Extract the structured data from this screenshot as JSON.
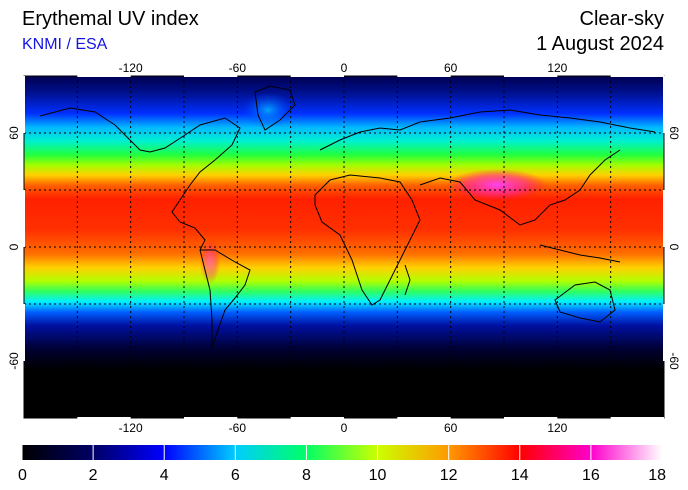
{
  "header": {
    "title": "Erythemal UV index",
    "source": "KNMI / ESA",
    "sky_condition": "Clear-sky",
    "date": "1 August 2024"
  },
  "map": {
    "projection": "equirectangular",
    "lon_range": [
      -180,
      180
    ],
    "lat_range": [
      -90,
      90
    ],
    "lon_labels": [
      "-120",
      "-60",
      "0",
      "60",
      "120"
    ],
    "lon_values": [
      -120,
      -60,
      0,
      60,
      120
    ],
    "lat_labels": [
      "60",
      "0",
      "-60"
    ],
    "lat_values": [
      60,
      0,
      -60
    ],
    "grid": "dashed, every 30 degrees",
    "background": "#000000",
    "coastline_color": "#000000"
  },
  "colorbar": {
    "min": 0,
    "max": 18,
    "tick_labels": [
      "0",
      "2",
      "4",
      "6",
      "8",
      "10",
      "12",
      "14",
      "16",
      "18"
    ],
    "colors": [
      "#000000",
      "#000066",
      "#0000ff",
      "#00ccff",
      "#00ff66",
      "#ccff00",
      "#ff9900",
      "#ff0000",
      "#ff00cc",
      "#ffffff"
    ]
  }
}
